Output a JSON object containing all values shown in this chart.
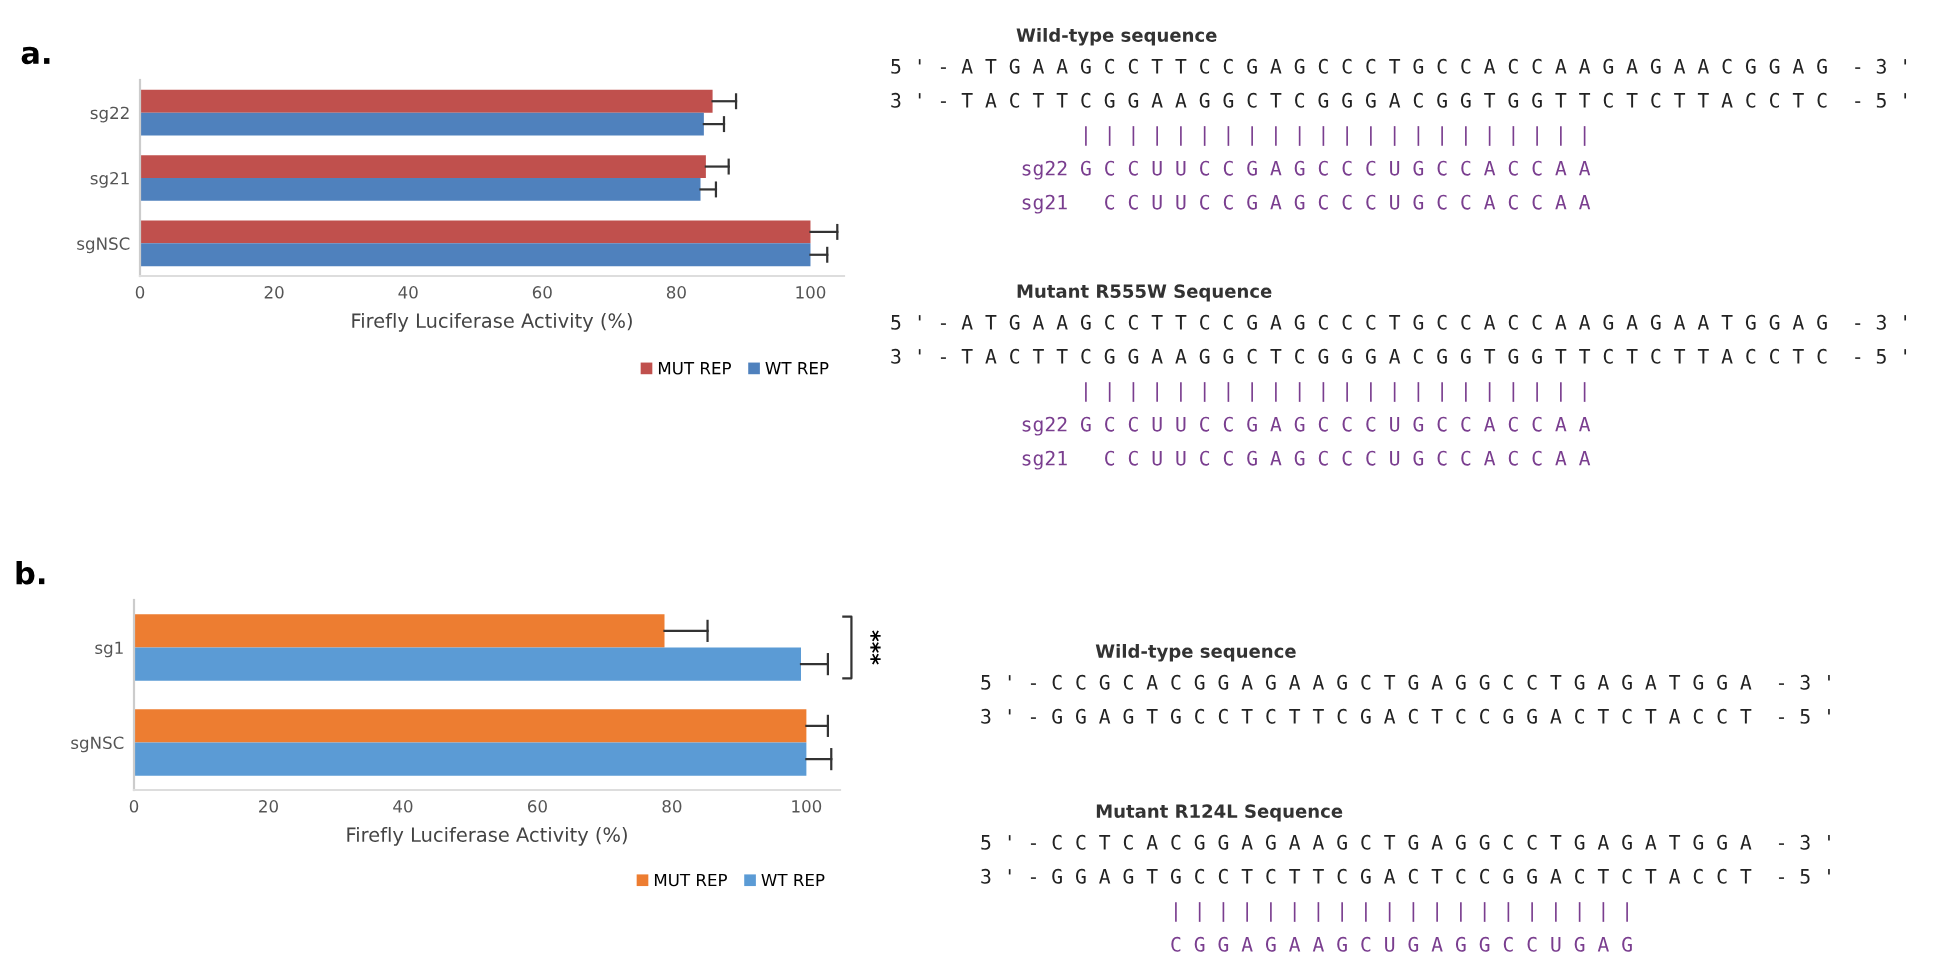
{
  "chart_data": [
    {
      "type": "bar",
      "orientation": "horizontal",
      "title": "a.",
      "xlabel": "Firefly Luciferase Activity (%)",
      "categories": [
        "sg22",
        "sg21",
        "sgNSC"
      ],
      "series": [
        {
          "name": "MUT REP",
          "color": "#c0504d",
          "values": [
            85.4,
            84.4,
            100
          ],
          "errors": [
            [
              85.4,
              88.9
            ],
            [
              84.4,
              87.8
            ],
            [
              100,
              104
            ]
          ]
        },
        {
          "name": "WT REP",
          "color": "#4f81bd",
          "values": [
            84.1,
            83.6,
            100
          ],
          "errors": [
            [
              84.1,
              87.1
            ],
            [
              83.6,
              85.9
            ],
            [
              100,
              102.5
            ]
          ]
        }
      ],
      "xlim": [
        0,
        105
      ],
      "xticks": [
        0,
        20,
        40,
        60,
        80,
        100
      ],
      "grid": false,
      "legend": "bottom right"
    },
    {
      "type": "other",
      "title": "Wild-type sequence",
      "annotations": [
        "5 ' - A T G A A G C C T T C C G A G C C C T G C C A C C A A G A G A A C G G A G  - 3 '",
        "3 ' - T A C T T C G G A A G G C T C G G G A C G G T G G T T C T C T T A C C T C  - 5 '",
        "                | | | | | | | | | | | | | | | | | | | | | |",
        "           sg22 G C C U U C C G A G C C C U G C C A C C A A",
        "           sg21   C C U U C C G A G C C C U G C C A C C A A"
      ]
    },
    {
      "type": "other",
      "title": "Mutant R555W Sequence",
      "annotations": [
        "5 ' - A T G A A G C C T T C C G A G C C C T G C C A C C A A G A G A A T G G A G  - 3 '",
        "3 ' - T A C T T C G G A A G G C T C G G G A C G G T G G T T C T C T T A C C T C  - 5 '",
        "                | | | | | | | | | | | | | | | | | | | | | |",
        "           sg22 G C C U U C C G A G C C C U G C C A C C A A",
        "           sg21   C C U U C C G A G C C C U G C C A C C A A"
      ]
    },
    {
      "type": "bar",
      "orientation": "horizontal",
      "title": "b.",
      "xlabel": "Firefly Luciferase Activity (%)",
      "categories": [
        "sg1",
        "sgNSC"
      ],
      "series": [
        {
          "name": "MUT REP",
          "color": "#ed7d31",
          "values": [
            78.9,
            100
          ],
          "errors": [
            [
              78.9,
              85.3
            ],
            [
              100,
              103.2
            ]
          ]
        },
        {
          "name": "WT REP",
          "color": "#5b9bd5",
          "values": [
            99.2,
            100
          ],
          "errors": [
            [
              99.2,
              103.2
            ],
            [
              100,
              103.7
            ]
          ]
        }
      ],
      "xlim": [
        0,
        105
      ],
      "xticks": [
        0,
        20,
        40,
        60,
        80,
        100
      ],
      "grid": false,
      "legend": "bottom right",
      "annotations": [
        "***"
      ]
    },
    {
      "type": "other",
      "title": "Wild-type sequence",
      "annotations": [
        "5 ' - C C G C A C G G A G A A G C T G A G G C C T G A G A T G G A  - 3 '",
        "3 ' - G G A G T G C C T C T T C G A C T C C G G A C T C T A C C T  - 5 '"
      ]
    },
    {
      "type": "other",
      "title": "Mutant R124L Sequence",
      "annotations": [
        "5 ' - C C T C A C G G A G A A G C T G A G G C C T G A G A T G G A  - 3 '",
        "3 ' - G G A G T G C C T C T T C G A C T C C G G A C T C T A C C T  - 5 '",
        "                | | | | | | | | | | | | | | | | | | | |",
        "                C G G A G A A G C U G A G G C C U G A G"
      ]
    }
  ]
}
